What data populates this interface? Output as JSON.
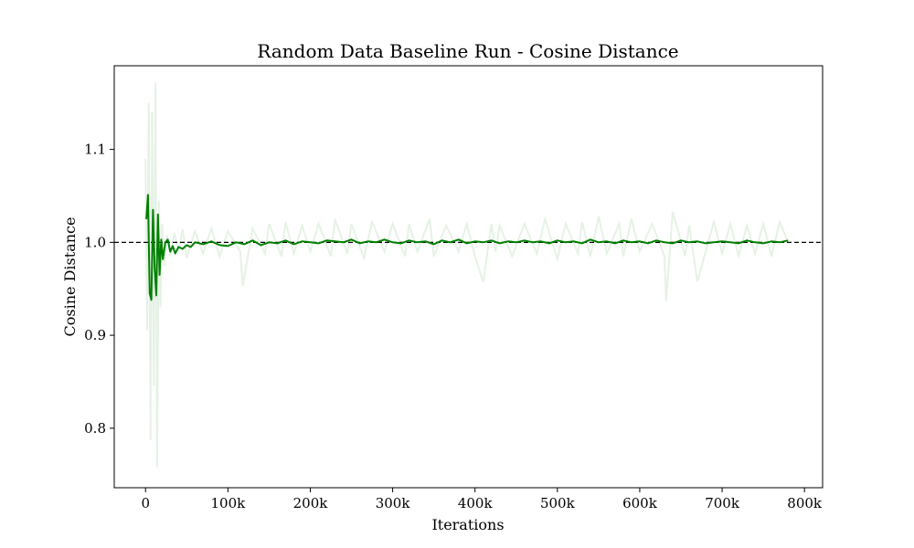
{
  "chart_data": {
    "type": "line",
    "title": "Random Data Baseline Run - Cosine Distance",
    "xlabel": "Iterations",
    "ylabel": "Cosine Distance",
    "xlim": [
      -38000,
      822000
    ],
    "ylim": [
      0.736,
      1.19
    ],
    "grid": false,
    "x_ticks": [
      {
        "value": 0,
        "label": "0"
      },
      {
        "value": 100000,
        "label": "100k"
      },
      {
        "value": 200000,
        "label": "200k"
      },
      {
        "value": 300000,
        "label": "300k"
      },
      {
        "value": 400000,
        "label": "400k"
      },
      {
        "value": 500000,
        "label": "500k"
      },
      {
        "value": 600000,
        "label": "600k"
      },
      {
        "value": 700000,
        "label": "700k"
      },
      {
        "value": 800000,
        "label": "800k"
      }
    ],
    "y_ticks": [
      {
        "value": 0.8,
        "label": "0.8"
      },
      {
        "value": 0.9,
        "label": "0.9"
      },
      {
        "value": 1.0,
        "label": "1.0"
      },
      {
        "value": 1.1,
        "label": "1.1"
      }
    ],
    "reference_line": {
      "y": 1.0,
      "style": "dashed",
      "color": "#000000"
    },
    "colors": {
      "smoothed": "#008000",
      "raw": "#008000",
      "raw_opacity": 0.1
    },
    "series": [
      {
        "role": "raw",
        "x": [
          0,
          2000,
          4000,
          6000,
          8000,
          10000,
          12000,
          14000,
          16000,
          18000,
          20000,
          23000,
          26000,
          30000,
          35000,
          40000,
          45000,
          50000,
          60000,
          70000,
          80000,
          90000,
          100000,
          115000,
          118000,
          130000,
          145000,
          150000,
          165000,
          170000,
          180000,
          190000,
          200000,
          210000,
          225000,
          230000,
          245000,
          250000,
          265000,
          275000,
          290000,
          300000,
          315000,
          320000,
          330000,
          345000,
          350000,
          365000,
          380000,
          390000,
          400000,
          410000,
          420000,
          425000,
          430000,
          445000,
          460000,
          475000,
          485000,
          500000,
          510000,
          525000,
          530000,
          540000,
          550000,
          560000,
          575000,
          580000,
          590000,
          600000,
          615000,
          630000,
          632000,
          640000,
          655000,
          660000,
          670000,
          690000,
          700000,
          710000,
          720000,
          730000,
          740000,
          750000,
          760000,
          770000,
          780000
        ],
        "y": [
          1.09,
          0.905,
          1.15,
          0.787,
          1.14,
          0.846,
          1.172,
          0.758,
          1.045,
          0.93,
          1.02,
          0.975,
          1.008,
          0.985,
          1.01,
          0.99,
          1.014,
          0.983,
          1.012,
          0.988,
          1.015,
          0.985,
          1.012,
          0.99,
          0.953,
          1.015,
          0.988,
          1.02,
          0.985,
          1.022,
          0.988,
          1.018,
          0.99,
          1.02,
          0.985,
          1.025,
          0.988,
          1.02,
          0.983,
          1.022,
          0.99,
          1.02,
          0.985,
          1.02,
          0.99,
          1.025,
          0.985,
          1.018,
          0.99,
          1.02,
          0.985,
          0.957,
          1.02,
          0.99,
          1.018,
          0.985,
          1.02,
          0.988,
          1.025,
          0.982,
          1.02,
          0.988,
          1.022,
          0.985,
          1.028,
          0.988,
          1.02,
          0.985,
          1.025,
          0.99,
          1.02,
          0.985,
          0.937,
          1.033,
          0.985,
          1.018,
          0.958,
          1.022,
          0.988,
          1.02,
          0.985,
          1.018,
          0.988,
          1.02,
          0.985,
          1.022,
          1.0
        ]
      },
      {
        "role": "smoothed",
        "x": [
          1000,
          3000,
          5000,
          7000,
          9000,
          11000,
          13000,
          15000,
          17000,
          19000,
          21000,
          24000,
          27000,
          30000,
          33000,
          36000,
          40000,
          45000,
          50000,
          55000,
          60000,
          70000,
          80000,
          90000,
          100000,
          110000,
          120000,
          130000,
          140000,
          150000,
          160000,
          170000,
          180000,
          190000,
          200000,
          210000,
          220000,
          230000,
          240000,
          250000,
          260000,
          270000,
          280000,
          290000,
          300000,
          310000,
          320000,
          330000,
          340000,
          350000,
          360000,
          370000,
          380000,
          390000,
          400000,
          410000,
          420000,
          430000,
          440000,
          450000,
          460000,
          470000,
          480000,
          490000,
          500000,
          510000,
          520000,
          530000,
          540000,
          550000,
          560000,
          570000,
          580000,
          590000,
          600000,
          610000,
          620000,
          630000,
          640000,
          650000,
          660000,
          670000,
          680000,
          690000,
          700000,
          710000,
          720000,
          730000,
          740000,
          750000,
          760000,
          770000,
          780000
        ],
        "y": [
          1.025,
          1.051,
          0.945,
          0.938,
          1.035,
          0.972,
          0.943,
          1.03,
          0.965,
          1.003,
          0.982,
          1.0,
          1.003,
          0.99,
          0.996,
          0.988,
          0.995,
          0.993,
          0.997,
          0.995,
          1.0,
          0.998,
          1.001,
          0.997,
          0.996,
          1.0,
          0.998,
          1.002,
          0.997,
          1.0,
          0.999,
          1.002,
          0.998,
          1.001,
          1.0,
          0.999,
          1.002,
          1.001,
          1.0,
          1.003,
          0.999,
          1.001,
          1.0,
          1.003,
          1.0,
          0.999,
          1.002,
          1.0,
          1.001,
          0.998,
          1.002,
          1.0,
          1.003,
          0.999,
          1.001,
          1.0,
          1.002,
          0.999,
          1.001,
          1.0,
          1.002,
          1.0,
          1.001,
          0.999,
          1.002,
          1.0,
          1.001,
          0.999,
          1.003,
          1.0,
          1.001,
          0.999,
          1.002,
          1.0,
          1.001,
          0.999,
          1.002,
          1.0,
          0.999,
          1.002,
          1.0,
          1.001,
          0.999,
          1.0,
          1.001,
          1.0,
          0.999,
          1.002,
          1.0,
          0.999,
          1.001,
          1.0,
          1.002
        ]
      }
    ]
  }
}
